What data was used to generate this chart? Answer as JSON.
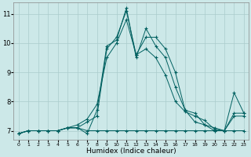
{
  "xlabel": "Humidex (Indice chaleur)",
  "ylabel": "",
  "background_color": "#cce8e8",
  "grid_color": "#aacccc",
  "line_color": "#006060",
  "xlim": [
    -0.5,
    23.5
  ],
  "ylim": [
    6.7,
    11.4
  ],
  "xticks": [
    0,
    1,
    2,
    3,
    4,
    5,
    6,
    7,
    8,
    9,
    10,
    11,
    12,
    13,
    14,
    15,
    16,
    17,
    18,
    19,
    20,
    21,
    22,
    23
  ],
  "yticks": [
    7,
    8,
    9,
    10,
    11
  ],
  "series": [
    {
      "x": [
        0,
        1,
        2,
        3,
        4,
        5,
        6,
        7,
        8,
        9,
        10,
        11,
        12,
        13,
        14,
        15,
        16,
        17,
        18,
        19,
        20,
        21,
        22,
        23
      ],
      "y": [
        6.9,
        7.0,
        7.0,
        7.0,
        7.0,
        7.1,
        7.1,
        7.0,
        7.0,
        7.0,
        7.0,
        7.0,
        7.0,
        7.0,
        7.0,
        7.0,
        7.0,
        7.0,
        7.0,
        7.0,
        7.0,
        7.0,
        7.0,
        7.0
      ]
    },
    {
      "x": [
        0,
        1,
        2,
        3,
        4,
        5,
        6,
        7,
        8,
        9,
        10,
        11,
        12,
        13,
        14,
        15,
        16,
        17,
        18,
        19,
        20,
        21,
        22,
        23
      ],
      "y": [
        6.9,
        7.0,
        7.0,
        7.0,
        7.0,
        7.1,
        7.1,
        7.3,
        7.5,
        9.8,
        10.2,
        11.1,
        9.6,
        10.2,
        10.2,
        9.8,
        9.0,
        7.7,
        7.6,
        7.2,
        7.1,
        7.0,
        7.5,
        7.5
      ]
    },
    {
      "x": [
        0,
        1,
        2,
        3,
        4,
        5,
        6,
        7,
        8,
        9,
        10,
        11,
        12,
        13,
        14,
        15,
        16,
        17,
        18,
        19,
        20,
        21,
        22,
        23
      ],
      "y": [
        6.9,
        7.0,
        7.0,
        7.0,
        7.0,
        7.1,
        7.1,
        6.9,
        7.7,
        9.9,
        10.1,
        11.2,
        9.5,
        10.5,
        9.9,
        9.5,
        8.5,
        7.7,
        7.3,
        7.2,
        7.0,
        7.0,
        8.3,
        7.6
      ]
    },
    {
      "x": [
        0,
        1,
        2,
        3,
        4,
        5,
        6,
        7,
        8,
        9,
        10,
        11,
        12,
        13,
        14,
        15,
        16,
        17,
        18,
        19,
        20,
        21,
        22,
        23
      ],
      "y": [
        6.9,
        7.0,
        7.0,
        7.0,
        7.0,
        7.1,
        7.2,
        7.4,
        7.9,
        9.5,
        10.0,
        10.8,
        9.6,
        9.8,
        9.5,
        8.9,
        8.0,
        7.65,
        7.5,
        7.35,
        7.05,
        7.0,
        7.6,
        7.6
      ]
    }
  ]
}
